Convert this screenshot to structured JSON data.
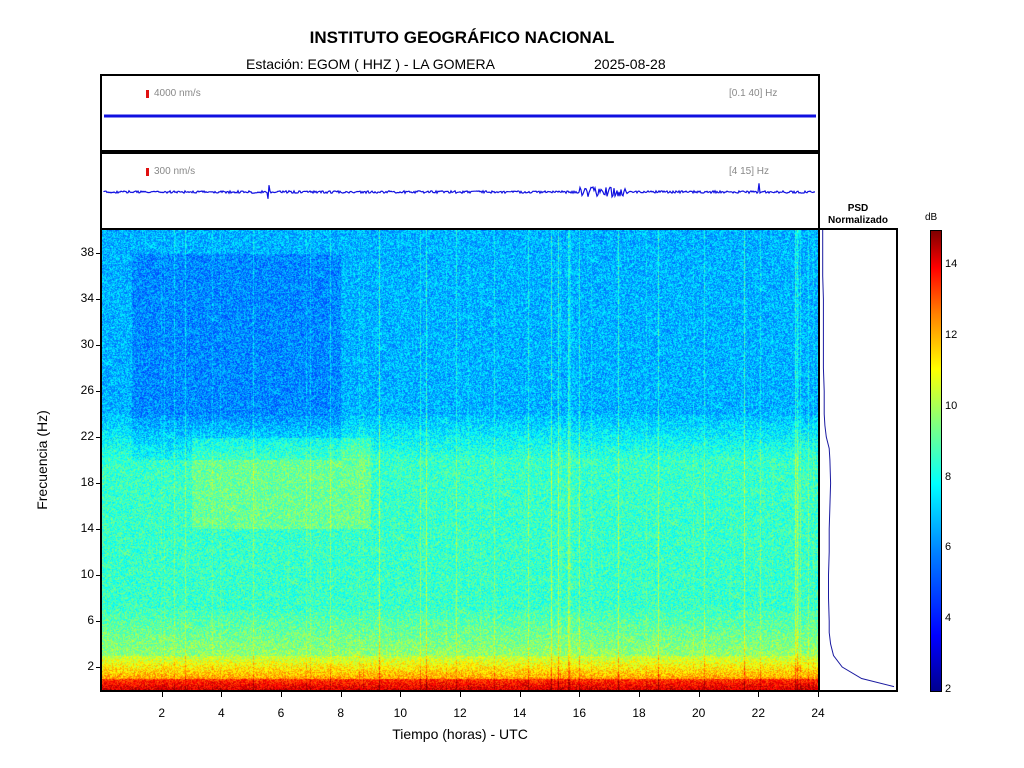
{
  "header": {
    "title": "INSTITUTO GEOGRÁFICO NACIONAL",
    "station_label": "Estación:  EGOM ( HHZ ) - LA GOMERA",
    "date": "2025-08-28"
  },
  "traces": [
    {
      "amplitude_label": "4000 nm/s",
      "filter_label": "[0.1 40] Hz"
    },
    {
      "amplitude_label": "300 nm/s",
      "filter_label": "[4 15] Hz"
    }
  ],
  "psd": {
    "title_line1": "PSD",
    "title_line2": "Normalizado"
  },
  "colors": {
    "trace": "#1010e0",
    "scale_mark": "#e01010",
    "psd_line": "#1a1aa0"
  },
  "chart_data": {
    "type": "heatmap",
    "title": "INSTITUTO GEOGRÁFICO NACIONAL",
    "xlabel": "Tiempo (horas) - UTC",
    "ylabel": "Frecuencia  (Hz)",
    "xlim": [
      0,
      24
    ],
    "ylim": [
      0,
      40
    ],
    "x_ticks": [
      "2",
      "4",
      "6",
      "8",
      "10",
      "12",
      "14",
      "16",
      "18",
      "20",
      "22",
      "24"
    ],
    "y_ticks": [
      "2",
      "6",
      "10",
      "14",
      "18",
      "22",
      "26",
      "30",
      "34",
      "38"
    ],
    "colorbar": {
      "label": "dB",
      "range": [
        2,
        15
      ],
      "ticks": [
        "2",
        "4",
        "6",
        "8",
        "10",
        "12",
        "14"
      ]
    },
    "psd_profile": {
      "frequency": [
        0.3,
        1,
        2,
        3,
        4,
        5,
        6,
        8,
        10,
        12,
        14,
        16,
        18,
        20,
        21,
        22,
        23,
        24,
        26,
        28,
        30,
        32,
        34,
        36,
        38,
        40
      ],
      "normalized": [
        1.0,
        0.55,
        0.28,
        0.16,
        0.12,
        0.1,
        0.1,
        0.09,
        0.09,
        0.1,
        0.1,
        0.11,
        0.12,
        0.11,
        0.1,
        0.06,
        0.04,
        0.03,
        0.03,
        0.02,
        0.02,
        0.02,
        0.02,
        0.01,
        0.01,
        0.01
      ]
    }
  }
}
